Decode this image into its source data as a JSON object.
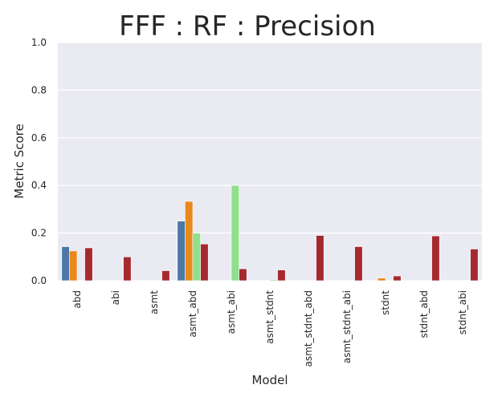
{
  "chart_data": {
    "type": "bar",
    "title": "FFF : RF : Precision",
    "xlabel": "Model",
    "ylabel": "Metric Score",
    "ylim": [
      0,
      1.0
    ],
    "yticks": [
      "0.0",
      "0.2",
      "0.4",
      "0.6",
      "0.8",
      "1.0"
    ],
    "grid": true,
    "legend": "none",
    "categories": [
      "abd",
      "abi",
      "asmt",
      "asmt_abd",
      "asmt_abi",
      "asmt_stdnt",
      "asmt_stdnt_abd",
      "asmt_stdnt_abi",
      "stdnt",
      "stdnt_abd",
      "stdnt_abi"
    ],
    "series": [
      {
        "color": "#4c78a8",
        "values": [
          0.143,
          0.0,
          0.0,
          0.25,
          0.0,
          0.0,
          0.0,
          0.0,
          0.0,
          0.0,
          0.0
        ]
      },
      {
        "color": "#e8891d",
        "values": [
          0.125,
          0.0,
          0.0,
          0.333,
          0.0,
          0.0,
          0.0,
          0.0,
          0.011,
          0.0,
          0.0
        ]
      },
      {
        "color": "#8ee08a",
        "values": [
          0.0,
          0.0,
          0.0,
          0.2,
          0.4,
          0.005,
          0.0,
          0.0,
          0.0,
          0.0,
          0.0
        ]
      },
      {
        "color": "#a52a2f",
        "values": [
          0.138,
          0.1,
          0.042,
          0.154,
          0.05,
          0.045,
          0.19,
          0.143,
          0.02,
          0.188,
          0.133
        ]
      }
    ]
  },
  "style": {
    "plot_bg": "#eaeaf2",
    "grid_color": "#ffffff"
  }
}
